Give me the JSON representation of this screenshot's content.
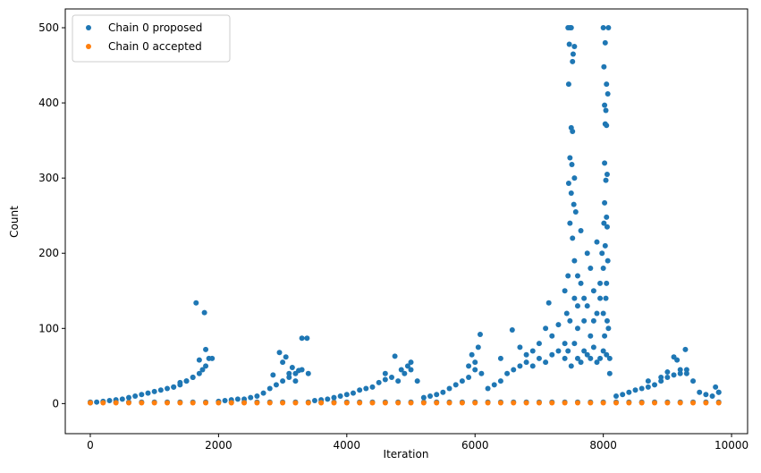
{
  "chart_data": {
    "type": "scatter",
    "xlabel": "Iteration",
    "ylabel": "Count",
    "xlim": [
      -390,
      10250
    ],
    "ylim": [
      -40,
      525
    ],
    "xticks": [
      0,
      2000,
      4000,
      6000,
      8000,
      10000
    ],
    "yticks": [
      0,
      100,
      200,
      300,
      400,
      500
    ],
    "legend": "upper left",
    "series": [
      {
        "name": "Chain 0 proposed",
        "color": "#1f77b4",
        "x": [
          0,
          100,
          200,
          300,
          400,
          500,
          600,
          700,
          800,
          900,
          1000,
          1100,
          1200,
          1300,
          1400,
          1500,
          1600,
          1700,
          1800,
          1900,
          1650,
          1780,
          1800,
          1700,
          1750,
          1850,
          1600,
          1500,
          1400,
          1300,
          2000,
          2100,
          2200,
          2300,
          2400,
          2500,
          2600,
          2700,
          2800,
          2900,
          3000,
          3100,
          3200,
          3300,
          3400,
          2950,
          3050,
          3150,
          3300,
          3380,
          3100,
          3000,
          2850,
          3250,
          3200,
          3500,
          3600,
          3700,
          3800,
          3900,
          4000,
          4100,
          4200,
          4300,
          4400,
          4500,
          4600,
          4700,
          4800,
          4900,
          5000,
          5100,
          4750,
          4950,
          5000,
          4600,
          4850,
          5200,
          5300,
          5400,
          5500,
          5600,
          5700,
          5800,
          5900,
          6000,
          6100,
          6080,
          6050,
          5950,
          6000,
          5900,
          6200,
          6300,
          6400,
          6500,
          6600,
          6700,
          6800,
          6900,
          7000,
          7100,
          7200,
          7300,
          7400,
          6580,
          6700,
          6900,
          7150,
          7300,
          7000,
          6800,
          7100,
          6400,
          7200,
          7450,
          7480,
          7500,
          7470,
          7520,
          7550,
          7530,
          7460,
          7500,
          7520,
          7480,
          7510,
          7550,
          7460,
          7500,
          7540,
          7570,
          7480,
          7520,
          7550,
          7600,
          7650,
          7700,
          7750,
          7800,
          7850,
          7900,
          7950,
          7450,
          7400,
          7430,
          7480,
          7600,
          7700,
          7800,
          7650,
          7750,
          7850,
          7550,
          7600,
          8000,
          8080,
          8030,
          8010,
          8050,
          8070,
          8020,
          8040,
          8030,
          8050,
          8020,
          8060,
          8040,
          8020,
          8050,
          8060,
          8030,
          8070,
          8000,
          8050,
          7950,
          8000,
          8060,
          8080,
          8020,
          8100,
          7980,
          8010,
          7900,
          8040,
          7400,
          7450,
          7500,
          7550,
          7600,
          7650,
          7700,
          7750,
          7800,
          7850,
          7900,
          7950,
          8000,
          8050,
          8100,
          8200,
          8300,
          8400,
          8500,
          8600,
          8700,
          8800,
          8900,
          9000,
          9100,
          9200,
          9300,
          9400,
          9500,
          9600,
          9700,
          9800,
          9280,
          9100,
          9150,
          9200,
          8900,
          9750,
          9800,
          8700,
          9000,
          9300,
          0,
          200,
          400,
          600,
          800,
          1000,
          1200,
          1400,
          1600,
          1800,
          2000,
          2200,
          2400,
          2600,
          2800,
          3000,
          3200,
          3400,
          3600,
          3800,
          4000,
          4200,
          4400,
          4600,
          4800,
          5000,
          5200,
          5400,
          5600,
          5800,
          6000,
          6200,
          6400,
          6600,
          6800,
          7000,
          7200,
          7400,
          7600,
          7800,
          8000,
          8200,
          8400,
          8600,
          8800,
          9000,
          9200,
          9400,
          9600,
          9800
        ],
        "values": [
          1,
          2,
          3,
          4,
          5,
          6,
          8,
          10,
          12,
          14,
          16,
          18,
          20,
          22,
          25,
          30,
          35,
          40,
          50,
          60,
          134,
          121,
          72,
          58,
          45,
          60,
          35,
          30,
          28,
          22,
          3,
          4,
          5,
          6,
          6,
          8,
          10,
          14,
          20,
          25,
          30,
          35,
          40,
          45,
          40,
          68,
          62,
          48,
          87,
          87,
          40,
          55,
          38,
          44,
          30,
          4,
          5,
          6,
          8,
          10,
          12,
          14,
          18,
          20,
          22,
          28,
          32,
          35,
          30,
          40,
          45,
          30,
          63,
          50,
          55,
          40,
          45,
          8,
          10,
          12,
          15,
          20,
          25,
          30,
          35,
          45,
          40,
          92,
          75,
          65,
          55,
          50,
          20,
          25,
          30,
          40,
          45,
          50,
          55,
          50,
          60,
          55,
          65,
          70,
          80,
          98,
          75,
          70,
          134,
          105,
          80,
          65,
          100,
          60,
          90,
          500,
          500,
          500,
          478,
          455,
          475,
          465,
          425,
          367,
          362,
          327,
          318,
          300,
          293,
          280,
          265,
          255,
          240,
          220,
          190,
          170,
          160,
          140,
          200,
          180,
          150,
          120,
          160,
          170,
          150,
          120,
          110,
          100,
          110,
          90,
          230,
          130,
          110,
          140,
          130,
          500,
          500,
          480,
          448,
          425,
          412,
          397,
          390,
          372,
          370,
          320,
          305,
          297,
          267,
          248,
          235,
          210,
          190,
          180,
          160,
          140,
          120,
          110,
          100,
          90,
          60,
          200,
          240,
          215,
          140,
          60,
          70,
          50,
          80,
          60,
          55,
          70,
          65,
          60,
          75,
          55,
          60,
          70,
          65,
          40,
          10,
          12,
          15,
          18,
          20,
          22,
          25,
          30,
          35,
          38,
          40,
          45,
          30,
          15,
          12,
          10,
          15,
          72,
          62,
          58,
          45,
          35,
          22,
          15,
          30,
          42,
          40,
          2,
          2,
          2,
          2,
          2,
          2,
          2,
          2,
          2,
          2,
          2,
          2,
          2,
          2,
          2,
          2,
          2,
          2,
          2,
          2,
          2,
          2,
          2,
          2,
          2,
          2,
          2,
          2,
          2,
          2,
          2,
          2,
          2,
          2,
          2,
          2,
          2,
          2,
          2,
          2,
          2,
          2,
          2,
          2,
          2,
          2,
          2,
          2,
          2,
          2
        ]
      },
      {
        "name": "Chain 0 accepted",
        "color": "#ff7f0e",
        "x": [
          0,
          200,
          400,
          600,
          800,
          1000,
          1200,
          1400,
          1600,
          1800,
          2000,
          2200,
          2400,
          2600,
          2800,
          3000,
          3200,
          3400,
          3600,
          3800,
          4000,
          4200,
          4400,
          4600,
          4800,
          5000,
          5200,
          5400,
          5600,
          5800,
          6000,
          6200,
          6400,
          6600,
          6800,
          7000,
          7200,
          7400,
          7600,
          7800,
          8000,
          8200,
          8400,
          8600,
          8800,
          9000,
          9200,
          9400,
          9600,
          9800
        ],
        "values": [
          1,
          1,
          1,
          1,
          1,
          1,
          1,
          1,
          1,
          1,
          1,
          1,
          1,
          1,
          1,
          1,
          1,
          1,
          1,
          1,
          1,
          1,
          1,
          1,
          1,
          1,
          1,
          1,
          1,
          1,
          1,
          1,
          1,
          1,
          1,
          1,
          1,
          1,
          1,
          1,
          1,
          1,
          1,
          1,
          1,
          1,
          1,
          1,
          1,
          1
        ]
      }
    ]
  }
}
